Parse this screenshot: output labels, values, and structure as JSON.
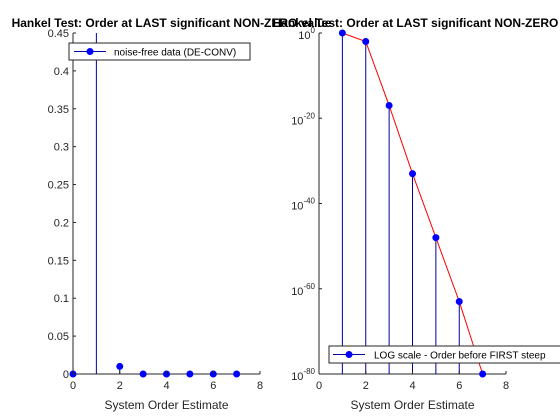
{
  "chart_data": [
    {
      "type": "stem",
      "title": "Hankel Test: Order at LAST significant NON-ZERO value",
      "xlabel": "System Order Estimate",
      "ylabel": "",
      "xlim": [
        0,
        8
      ],
      "ylim": [
        0,
        0.45
      ],
      "xticks": [
        "0",
        "2",
        "4",
        "6",
        "8"
      ],
      "yticks": [
        "0",
        "0.05",
        "0.1",
        "0.15",
        "0.2",
        "0.25",
        "0.3",
        "0.35",
        "0.4",
        "0.45"
      ],
      "yscale": "linear",
      "legend": {
        "position": "top-left",
        "entries": [
          "noise-free data (DE-CONV)"
        ]
      },
      "series": [
        {
          "name": "noise-free data (DE-CONV)",
          "color": "#0000ff",
          "stem_color": "#0000a0",
          "x": [
            0,
            1,
            2,
            3,
            4,
            5,
            6,
            7
          ],
          "y": [
            0,
            0.5,
            0.01,
            0.0,
            0.0,
            0.0,
            0.0,
            0.0
          ]
        }
      ]
    },
    {
      "type": "stem",
      "title": "Hankel Test: Order at LAST significant NON-ZERO value",
      "xlabel": "System Order Estimate",
      "ylabel": "",
      "xlim": [
        0,
        8
      ],
      "ylim_exponent": [
        -80,
        0
      ],
      "xticks": [
        "0",
        "2",
        "4",
        "6",
        "8"
      ],
      "yticks": [
        {
          "base": "10",
          "exp": "0",
          "value": 0
        },
        {
          "base": "10",
          "exp": "-20",
          "value": -20
        },
        {
          "base": "10",
          "exp": "-40",
          "value": -40
        },
        {
          "base": "10",
          "exp": "-60",
          "value": -60
        },
        {
          "base": "10",
          "exp": "-80",
          "value": -80
        }
      ],
      "yscale": "log",
      "legend": {
        "position": "bottom-right",
        "entries": [
          "LOG scale - Order before FIRST steep"
        ]
      },
      "series": [
        {
          "name": "LOG scale - Order before FIRST steep",
          "color": "#0000ff",
          "stem_color": "#0000a0",
          "line_color": "#ff0000",
          "x": [
            1,
            2,
            3,
            4,
            5,
            6,
            7
          ],
          "log10_y": [
            0,
            -2,
            -17,
            -33,
            -48,
            -63,
            -80
          ]
        }
      ]
    }
  ]
}
